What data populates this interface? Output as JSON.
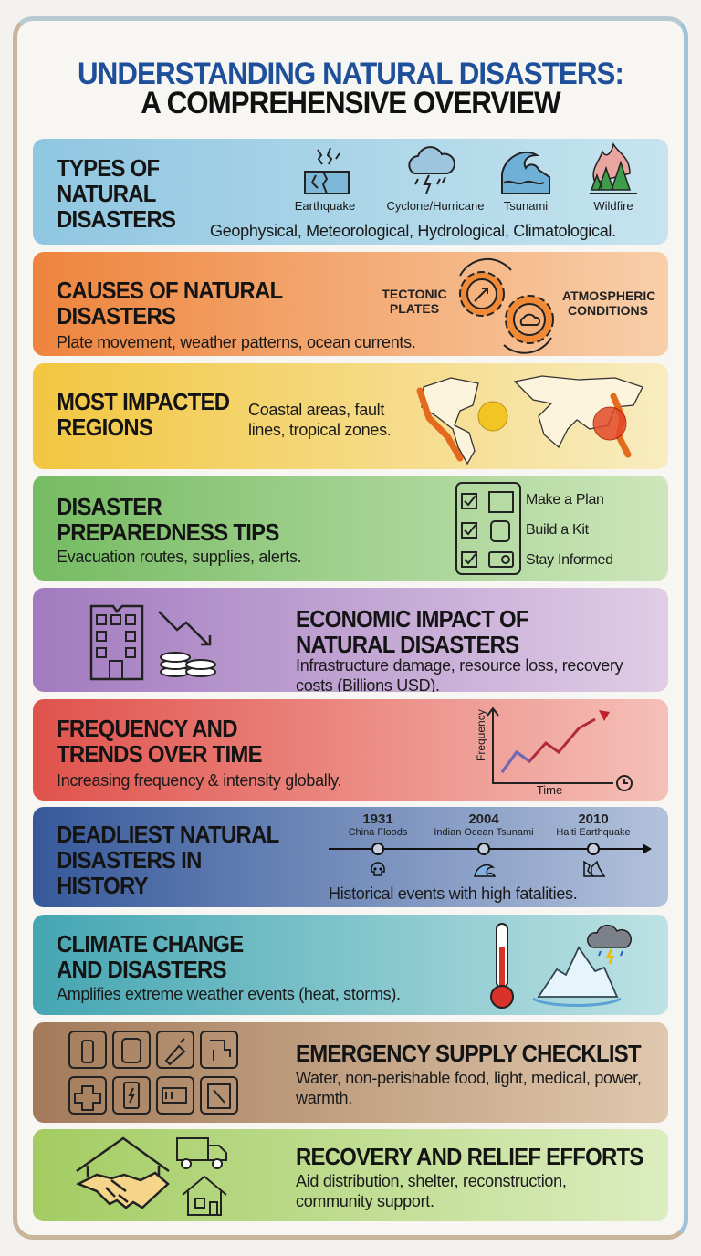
{
  "title": {
    "line1": "UNDERSTANDING NATURAL DISASTERS:",
    "line2": "A COMPREHENSIVE OVERVIEW"
  },
  "sections": [
    {
      "heading": "TYPES OF NATURAL DISASTERS",
      "body": "Geophysical, Meteorological, Hydrological, Climatological.",
      "icons": [
        {
          "icon": "earthquake-icon",
          "label": "Earthquake"
        },
        {
          "icon": "storm-cloud-icon",
          "label": "Cyclone/Hurricane"
        },
        {
          "icon": "wave-icon",
          "label": "Tsunami"
        },
        {
          "icon": "fire-trees-icon",
          "label": "Wildfire"
        }
      ],
      "color": "#9fd0e6"
    },
    {
      "heading": "CAUSES OF NATURAL DISASTERS",
      "body": "Plate movement, weather patterns, ocean currents.",
      "labels": [
        "TECTONIC PLATES",
        "ATMOSPHERIC CONDITIONS"
      ],
      "color": "#f0873f"
    },
    {
      "heading": "MOST IMPACTED REGIONS",
      "body": "Coastal areas, fault lines, tropical zones.",
      "color": "#f3c94a"
    },
    {
      "heading": "DISASTER PREPAREDNESS TIPS",
      "body": "Evacuation routes, supplies, alerts.",
      "checklist": [
        "Make a Plan",
        "Build a Kit",
        "Stay Informed"
      ],
      "color": "#7bbf6a"
    },
    {
      "heading": "ECONOMIC IMPACT OF NATURAL DISASTERS",
      "body": "Infrastructure damage, resource loss, recovery costs (Billions USD).",
      "color": "#a57dc0"
    },
    {
      "heading": "FREQUENCY AND TRENDS OVER TIME",
      "body": "Increasing frequency & intensity globally.",
      "axis": {
        "y": "Frequency",
        "x": "Time"
      },
      "color": "#e15b55"
    },
    {
      "heading": "DEADLIEST NATURAL DISASTERS IN HISTORY",
      "body": "Historical events with high fatalities.",
      "events": [
        {
          "year": "1931",
          "name": "China Floods",
          "icon": "skull-icon"
        },
        {
          "year": "2004",
          "name": "Indian Ocean Tsunami",
          "icon": "wave-icon"
        },
        {
          "year": "2010",
          "name": "Haiti Earthquake",
          "icon": "rubble-icon"
        }
      ],
      "color": "#3a5fa0"
    },
    {
      "heading": "CLIMATE CHANGE AND DISASTERS",
      "body": "Amplifies extreme weather events (heat, storms).",
      "color": "#4aaab5"
    },
    {
      "heading": "EMERGENCY SUPPLY CHECKLIST",
      "body": "Water, non-perishable food, light, medical, power, warmth.",
      "color": "#a88060"
    },
    {
      "heading": "RECOVERY AND RELIEF EFFORTS",
      "body": "Aid distribution, shelter, reconstruction, community support.",
      "color": "#a8cf6a"
    }
  ]
}
